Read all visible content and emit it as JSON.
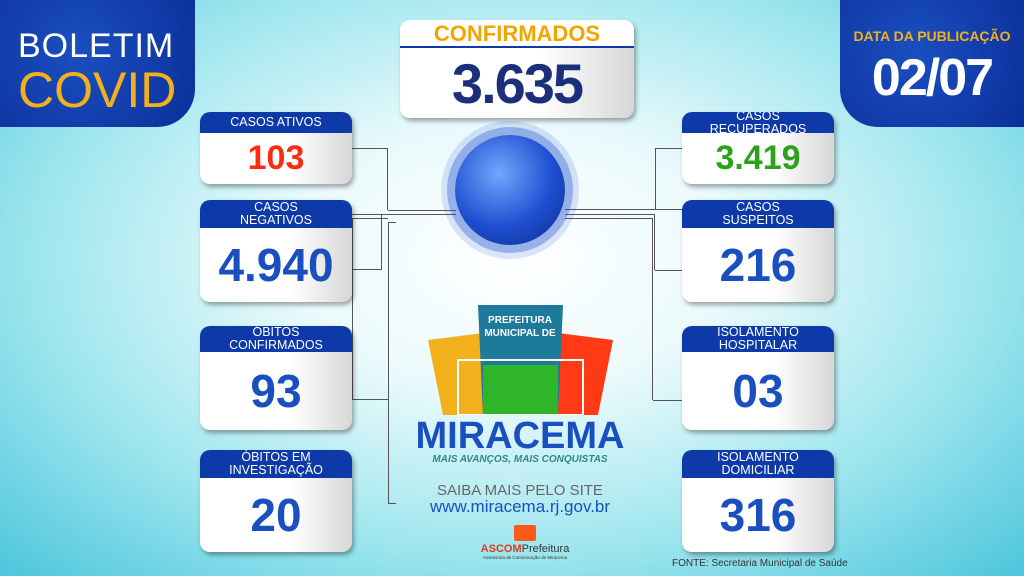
{
  "header": {
    "title_line1": "BOLETIM",
    "title_line2": "COVID",
    "date_label": "DATA DA PUBLICAÇÃO",
    "date": "02/07"
  },
  "confirmados": {
    "label": "CONFIRMADOS",
    "value": "3.635"
  },
  "left_cards": [
    {
      "label": "CASOS ATIVOS",
      "value": "103",
      "color": "#ff2a12"
    },
    {
      "label": "CASOS NEGATIVOS",
      "value": "4.940",
      "color": "#1a4fc0"
    },
    {
      "label": "ÓBITOS CONFIRMADOS",
      "value": "93",
      "color": "#1a4fc0"
    },
    {
      "label": "ÓBITOS EM INVESTIGAÇÃO",
      "value": "20",
      "color": "#1a4fc0"
    }
  ],
  "right_cards": [
    {
      "label": "CASOS RECUPERADOS",
      "value": "3.419",
      "color": "#2aa31a"
    },
    {
      "label": "CASOS SUSPEITOS",
      "value": "216",
      "color": "#1a4fc0"
    },
    {
      "label": "ISOLAMENTO HOSPITALAR",
      "value": "03",
      "color": "#1a4fc0"
    },
    {
      "label": "ISOLAMENTO DOMICILIAR",
      "value": "316",
      "color": "#1a4fc0"
    }
  ],
  "logo": {
    "top_text": "PREFEITURA MUNICIPAL DE",
    "name": "MIRACEMA",
    "slogan": "MAIS AVANÇOS, MAIS CONQUISTAS"
  },
  "site": {
    "label": "SAIBA MAIS PELO SITE",
    "url": "www.miracema.rj.gov.br"
  },
  "ascom": {
    "name_a": "ASCOM",
    "name_b": "Prefeitura",
    "sub": "Assessoria de Comunicação de Miracema"
  },
  "footer": {
    "source": "FONTE: Secretaria Municipal de Saúde"
  }
}
